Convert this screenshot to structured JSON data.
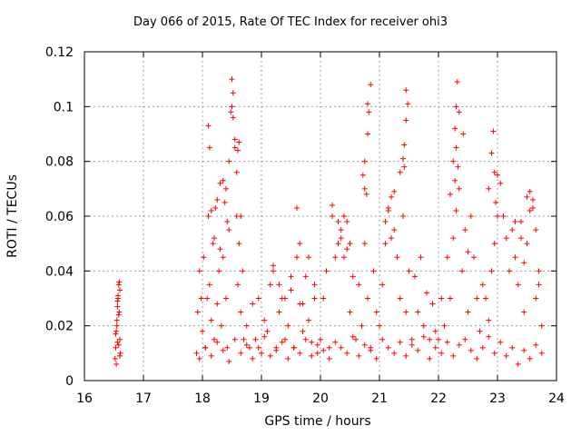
{
  "chart_data": {
    "type": "scatter",
    "title": "Day 066 of 2015, Rate Of TEC Index for receiver ohi3",
    "xlabel": "GPS time / hours",
    "ylabel": "ROTI / TECUs",
    "xlim": [
      16,
      24
    ],
    "ylim": [
      0,
      0.12
    ],
    "xticks": [
      "16",
      "17",
      "18",
      "19",
      "20",
      "21",
      "22",
      "23",
      "24"
    ],
    "yticks": [
      "0",
      "0.02",
      "0.04",
      "0.06",
      "0.08",
      "0.1",
      "0.12"
    ],
    "grid": true,
    "marker": "+",
    "color": "#ff0000",
    "series": [
      {
        "name": "ROTI",
        "x": [
          16.52,
          16.53,
          16.54,
          16.55,
          16.56,
          16.57,
          16.58,
          16.59,
          16.6,
          16.61,
          16.55,
          16.57,
          16.59,
          16.6,
          16.54,
          16.56,
          16.58,
          16.6,
          16.53,
          16.56,
          16.58,
          17.9,
          17.92,
          17.95,
          17.98,
          18.0,
          18.02,
          18.05,
          18.08,
          18.1,
          18.12,
          18.15,
          18.18,
          18.2,
          18.22,
          18.25,
          18.28,
          18.3,
          18.32,
          18.35,
          18.38,
          18.4,
          18.42,
          18.45,
          18.48,
          18.5,
          18.52,
          18.55,
          18.58,
          18.6,
          18.62,
          18.65,
          18.68,
          18.7,
          18.1,
          18.12,
          18.15,
          18.2,
          18.25,
          18.3,
          18.35,
          18.4,
          18.42,
          18.45,
          18.5,
          18.52,
          18.55,
          18.58,
          18.6,
          18.62,
          18.65,
          18.75,
          18.8,
          18.85,
          18.9,
          18.95,
          19.0,
          19.05,
          19.1,
          19.15,
          19.2,
          19.25,
          19.3,
          19.35,
          19.4,
          19.45,
          19.5,
          19.55,
          19.6,
          19.65,
          19.7,
          19.75,
          19.8,
          19.85,
          19.9,
          19.95,
          19.2,
          19.3,
          19.4,
          19.5,
          19.6,
          19.65,
          19.7,
          19.8,
          19.9,
          20.0,
          20.05,
          20.1,
          20.15,
          20.2,
          20.25,
          20.3,
          20.35,
          20.4,
          20.45,
          20.5,
          20.55,
          20.6,
          20.65,
          20.7,
          20.75,
          20.8,
          20.85,
          20.9,
          20.95,
          20.2,
          20.3,
          20.35,
          20.4,
          20.45,
          20.5,
          20.72,
          20.75,
          20.78,
          20.8,
          20.82,
          20.85,
          20.75,
          20.8,
          21.0,
          21.05,
          21.1,
          21.15,
          21.2,
          21.25,
          21.3,
          21.35,
          21.4,
          21.45,
          21.5,
          21.55,
          21.6,
          21.65,
          21.7,
          21.75,
          21.8,
          21.85,
          21.9,
          21.95,
          21.1,
          21.15,
          21.2,
          21.25,
          21.35,
          21.4,
          21.42,
          21.45,
          21.48,
          21.45,
          21.42,
          22.0,
          22.05,
          22.1,
          22.15,
          22.2,
          22.25,
          22.3,
          22.35,
          22.4,
          22.45,
          22.5,
          22.55,
          22.6,
          22.65,
          22.7,
          22.75,
          22.8,
          22.85,
          22.9,
          22.95,
          22.25,
          22.28,
          22.3,
          22.32,
          22.35,
          22.28,
          22.3,
          22.33,
          22.42,
          22.2,
          22.5,
          23.0,
          23.05,
          23.1,
          23.15,
          23.2,
          23.25,
          23.3,
          23.35,
          23.4,
          23.45,
          23.5,
          23.55,
          23.6,
          23.65,
          23.7,
          23.75,
          22.85,
          22.9,
          22.93,
          22.95,
          22.97,
          23.0,
          23.3,
          23.4,
          23.45,
          23.5,
          23.55,
          23.6,
          23.65,
          23.7,
          17.95,
          18.05,
          18.15,
          18.25,
          18.35,
          18.45,
          18.55,
          18.65,
          18.75,
          18.85,
          18.95,
          19.05,
          19.15,
          19.25,
          19.35,
          19.45,
          19.55,
          19.65,
          19.75,
          19.85,
          19.95,
          20.05,
          20.15,
          20.25,
          20.35,
          20.45,
          20.55,
          20.65,
          20.75,
          20.85,
          20.95,
          21.05,
          21.15,
          21.25,
          21.35,
          21.45,
          21.55,
          21.65,
          21.75,
          21.85,
          21.95,
          22.05,
          22.15,
          22.25,
          22.35,
          22.45,
          22.55,
          22.65,
          22.75,
          22.85,
          22.95,
          23.05,
          23.15,
          23.25,
          23.35,
          23.45,
          23.55,
          23.65,
          23.75
        ],
        "y": [
          0.008,
          0.012,
          0.018,
          0.022,
          0.027,
          0.031,
          0.035,
          0.025,
          0.015,
          0.01,
          0.02,
          0.03,
          0.036,
          0.033,
          0.006,
          0.014,
          0.024,
          0.009,
          0.017,
          0.029,
          0.013,
          0.01,
          0.025,
          0.04,
          0.03,
          0.018,
          0.045,
          0.012,
          0.03,
          0.06,
          0.035,
          0.022,
          0.05,
          0.015,
          0.063,
          0.028,
          0.04,
          0.072,
          0.02,
          0.045,
          0.065,
          0.03,
          0.012,
          0.055,
          0.098,
          0.11,
          0.105,
          0.085,
          0.06,
          0.035,
          0.05,
          0.025,
          0.04,
          0.015,
          0.093,
          0.085,
          0.062,
          0.052,
          0.066,
          0.048,
          0.073,
          0.07,
          0.058,
          0.08,
          0.1,
          0.096,
          0.088,
          0.076,
          0.084,
          0.087,
          0.06,
          0.02,
          0.012,
          0.028,
          0.015,
          0.03,
          0.01,
          0.022,
          0.018,
          0.035,
          0.04,
          0.012,
          0.025,
          0.03,
          0.015,
          0.02,
          0.033,
          0.012,
          0.045,
          0.028,
          0.018,
          0.038,
          0.022,
          0.014,
          0.03,
          0.01,
          0.042,
          0.035,
          0.03,
          0.038,
          0.063,
          0.05,
          0.028,
          0.045,
          0.035,
          0.015,
          0.03,
          0.04,
          0.012,
          0.064,
          0.045,
          0.058,
          0.052,
          0.06,
          0.048,
          0.025,
          0.038,
          0.015,
          0.035,
          0.02,
          0.05,
          0.03,
          0.012,
          0.04,
          0.025,
          0.06,
          0.05,
          0.055,
          0.045,
          0.058,
          0.05,
          0.075,
          0.08,
          0.068,
          0.09,
          0.098,
          0.108,
          0.07,
          0.101,
          0.02,
          0.035,
          0.05,
          0.062,
          0.067,
          0.055,
          0.045,
          0.03,
          0.06,
          0.025,
          0.04,
          0.015,
          0.038,
          0.025,
          0.045,
          0.02,
          0.032,
          0.015,
          0.028,
          0.018,
          0.058,
          0.063,
          0.052,
          0.069,
          0.076,
          0.081,
          0.086,
          0.095,
          0.101,
          0.106,
          0.078,
          0.015,
          0.03,
          0.02,
          0.045,
          0.03,
          0.052,
          0.062,
          0.07,
          0.04,
          0.055,
          0.025,
          0.06,
          0.045,
          0.03,
          0.018,
          0.035,
          0.03,
          0.022,
          0.04,
          0.05,
          0.08,
          0.092,
          0.1,
          0.109,
          0.098,
          0.073,
          0.085,
          0.078,
          0.09,
          0.068,
          0.047,
          0.075,
          0.072,
          0.06,
          0.052,
          0.04,
          0.055,
          0.045,
          0.035,
          0.058,
          0.025,
          0.05,
          0.062,
          0.066,
          0.03,
          0.04,
          0.02,
          0.07,
          0.083,
          0.091,
          0.076,
          0.065,
          0.06,
          0.058,
          0.052,
          0.043,
          0.067,
          0.069,
          0.063,
          0.055,
          0.035,
          0.008,
          0.012,
          0.009,
          0.014,
          0.011,
          0.007,
          0.015,
          0.01,
          0.013,
          0.008,
          0.012,
          0.016,
          0.009,
          0.011,
          0.014,
          0.008,
          0.012,
          0.01,
          0.015,
          0.009,
          0.013,
          0.011,
          0.008,
          0.014,
          0.012,
          0.01,
          0.016,
          0.009,
          0.013,
          0.011,
          0.008,
          0.015,
          0.012,
          0.01,
          0.014,
          0.009,
          0.013,
          0.011,
          0.016,
          0.008,
          0.012,
          0.01,
          0.014,
          0.009,
          0.013,
          0.015,
          0.011,
          0.008,
          0.012,
          0.016,
          0.01,
          0.014,
          0.009,
          0.012,
          0.006,
          0.011,
          0.008,
          0.013,
          0.01
        ]
      }
    ]
  }
}
